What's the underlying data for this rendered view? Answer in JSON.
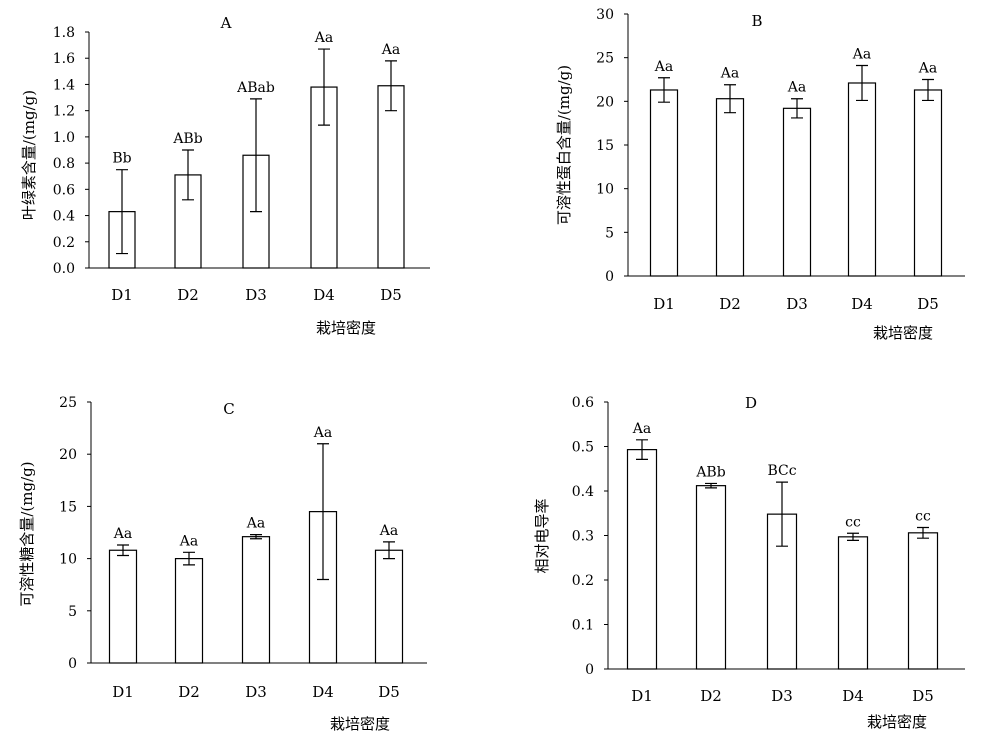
{
  "chart_data": [
    {
      "type": "bar",
      "title": "A",
      "categories": [
        "D1",
        "D2",
        "D3",
        "D4",
        "D5"
      ],
      "values": [
        0.43,
        0.71,
        0.86,
        1.38,
        1.39
      ],
      "errors": [
        0.32,
        0.19,
        0.43,
        0.29,
        0.19
      ],
      "annotations": [
        "Bb",
        "ABb",
        "ABab",
        "Aa",
        "Aa"
      ],
      "xlabel": "栽培密度",
      "ylabel": "叶绿素含量/(mg/g)",
      "ylim": [
        0,
        1.8
      ],
      "yticks": [
        0,
        0.2,
        0.4,
        0.6,
        0.8,
        1.0,
        1.2,
        1.4,
        1.6,
        1.8
      ],
      "ytick_labels": [
        "0.0",
        "0.2",
        "0.4",
        "0.6",
        "0.8",
        "1.0",
        "1.2",
        "1.4",
        "1.6",
        "1.8"
      ],
      "grid": false
    },
    {
      "type": "bar",
      "title": "B",
      "categories": [
        "D1",
        "D2",
        "D3",
        "D4",
        "D5"
      ],
      "values": [
        21.3,
        20.3,
        19.2,
        22.1,
        21.3
      ],
      "errors": [
        1.4,
        1.6,
        1.1,
        2.0,
        1.2
      ],
      "annotations": [
        "Aa",
        "Aa",
        "Aa",
        "Aa",
        "Aa"
      ],
      "xlabel": "栽培密度",
      "ylabel": "可溶性蛋白含量/(mg/g)",
      "ylim": [
        0,
        30
      ],
      "yticks": [
        0,
        5,
        10,
        15,
        20,
        25,
        30
      ],
      "ytick_labels": [
        "0",
        "5",
        "10",
        "15",
        "20",
        "25",
        "30"
      ],
      "grid": false
    },
    {
      "type": "bar",
      "title": "C",
      "categories": [
        "D1",
        "D2",
        "D3",
        "D4",
        "D5"
      ],
      "values": [
        10.8,
        10.0,
        12.1,
        14.5,
        10.8
      ],
      "errors": [
        0.5,
        0.6,
        0.2,
        6.5,
        0.8
      ],
      "annotations": [
        "Aa",
        "Aa",
        "Aa",
        "Aa",
        "Aa"
      ],
      "xlabel": "栽培密度",
      "ylabel": "可溶性糖含量/(mg/g)",
      "ylim": [
        0,
        25
      ],
      "yticks": [
        0,
        5,
        10,
        15,
        20,
        25
      ],
      "ytick_labels": [
        "0",
        "5",
        "10",
        "15",
        "20",
        "25"
      ],
      "grid": false
    },
    {
      "type": "bar",
      "title": "D",
      "categories": [
        "D1",
        "D2",
        "D3",
        "D4",
        "D5"
      ],
      "values": [
        0.493,
        0.412,
        0.348,
        0.297,
        0.306
      ],
      "errors": [
        0.022,
        0.005,
        0.072,
        0.008,
        0.012
      ],
      "annotations": [
        "Aa",
        "ABb",
        "BCc",
        "cc",
        "cc"
      ],
      "xlabel": "栽培密度",
      "ylabel": "相对电导率",
      "ylim": [
        0,
        0.6
      ],
      "yticks": [
        0,
        0.1,
        0.2,
        0.3,
        0.4,
        0.5,
        0.6
      ],
      "ytick_labels": [
        "0",
        "0.1",
        "0.2",
        "0.3",
        "0.4",
        "0.5",
        "0.6"
      ],
      "grid": false
    }
  ]
}
